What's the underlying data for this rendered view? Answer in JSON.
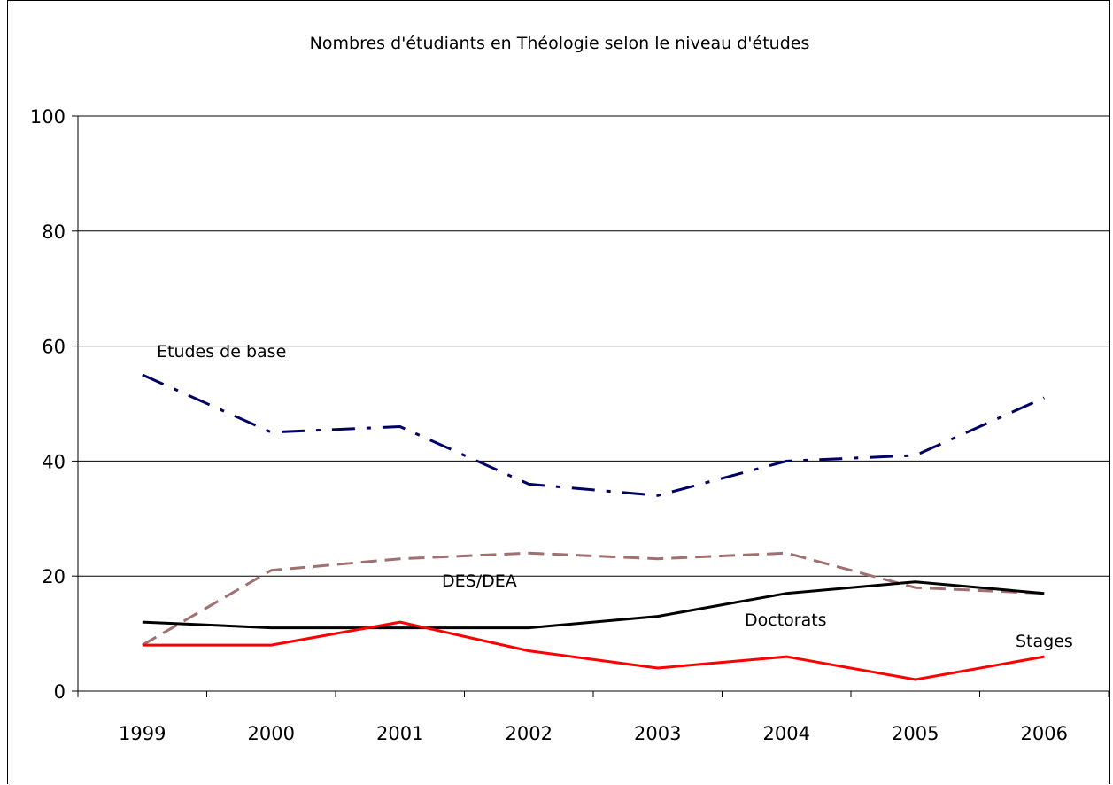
{
  "chart_data": {
    "type": "line",
    "title": "Nombres d'étudiants en Théologie selon le niveau d'études",
    "xlabel": "",
    "ylabel": "",
    "categories": [
      "1999",
      "2000",
      "2001",
      "2002",
      "2003",
      "2004",
      "2005",
      "2006"
    ],
    "ylim": [
      0,
      100
    ],
    "yticks": [
      0,
      20,
      40,
      60,
      80,
      100
    ],
    "grid": true,
    "legend": "none (series labelled directly on the plot)",
    "series": [
      {
        "name": "Etudes de base",
        "values": [
          55,
          45,
          46,
          36,
          34,
          40,
          41,
          51
        ],
        "color": "#000066",
        "style": "dash-dot"
      },
      {
        "name": "DES/DEA",
        "values": [
          8,
          21,
          23,
          24,
          23,
          24,
          18,
          17
        ],
        "color": "#a07070",
        "style": "dashed"
      },
      {
        "name": "Doctorats",
        "values": [
          12,
          11,
          11,
          11,
          13,
          17,
          19,
          17
        ],
        "color": "#000000",
        "style": "solid"
      },
      {
        "name": "Stages",
        "values": [
          8,
          8,
          12,
          7,
          4,
          6,
          2,
          6
        ],
        "color": "#ff0000",
        "style": "solid"
      }
    ]
  }
}
